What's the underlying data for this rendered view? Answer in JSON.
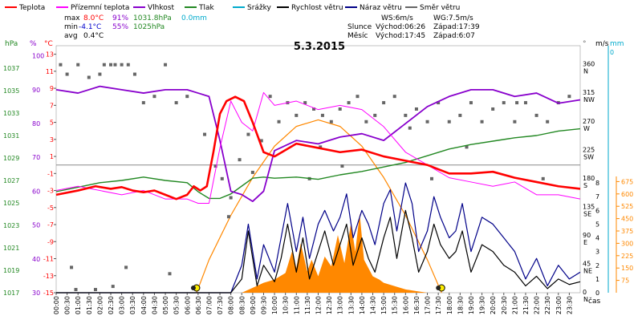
{
  "legend": [
    {
      "label": "Teplota",
      "color": "#ff0000"
    },
    {
      "label": "Přízemní teplota",
      "color": "#ff00ff"
    },
    {
      "label": "Vlhkost",
      "color": "#8800cc"
    },
    {
      "label": "Tlak",
      "color": "#228822"
    },
    {
      "label": "Srážky",
      "color": "#00aacc"
    },
    {
      "label": "Rychlost větru",
      "color": "#000000"
    },
    {
      "label": "Náraz větru",
      "color": "#000088"
    },
    {
      "label": "Směr větru",
      "color": "#666666"
    }
  ],
  "stats": {
    "max_label": "max",
    "max_temp": "8.0°C",
    "max_hum": "91%",
    "max_press": "1031.8hPa",
    "max_rain": "0.0mm",
    "min_label": "min",
    "min_temp": "-4.1°C",
    "min_hum": "55%",
    "min_press": "1025hPa",
    "avg_label": "avg",
    "avg_temp": "0.4°C"
  },
  "sun": {
    "ws": "WS:6m/s",
    "wg": "WG:7.5m/s",
    "slunce_label": "Slunce",
    "sun_rise": "Východ:06:26",
    "sun_set": "Západ:17:39",
    "mesic_label": "Měsíc",
    "moon_rise": "Východ:17:45",
    "moon_set": "Západ:6:07"
  },
  "units": {
    "hpa": "hPa",
    "pct": "%",
    "celsius": "°C",
    "deg": "°",
    "ms": "m/s",
    "mm": "mm",
    "cas": "čas"
  },
  "chart_data": {
    "type": "line",
    "title": "5.3.2015",
    "x_ticks": [
      "00:00",
      "00:30",
      "01:00",
      "01:30",
      "02:00",
      "02:30",
      "03:00",
      "03:30",
      "04:00",
      "04:30",
      "05:00",
      "05:30",
      "06:00",
      "06:30",
      "07:00",
      "07:30",
      "08:00",
      "08:30",
      "09:00",
      "09:30",
      "10:00",
      "10:30",
      "11:00",
      "11:30",
      "12:00",
      "12:30",
      "13:00",
      "13:30",
      "14:00",
      "14:30",
      "15:00",
      "15:30",
      "16:00",
      "16:30",
      "17:00",
      "17:30",
      "18:00",
      "18:30",
      "19:00",
      "19:30",
      "20:00",
      "20:30",
      "21:00",
      "21:30",
      "22:00",
      "22:30",
      "23:00",
      "23:30"
    ],
    "axes": {
      "hpa": {
        "ticks": [
          1017,
          1019,
          1021,
          1023,
          1025,
          1027,
          1029,
          1031,
          1033,
          1035,
          1037
        ],
        "range": [
          1017,
          1039
        ]
      },
      "pct": {
        "ticks": [
          30,
          40,
          50,
          60,
          70,
          80,
          90,
          100
        ],
        "range": [
          30,
          103
        ]
      },
      "celsius": {
        "ticks": [
          -15,
          -13,
          -11,
          -9,
          -7,
          -5,
          -3,
          -1,
          1,
          3,
          5,
          7,
          9,
          11,
          13
        ],
        "range": [
          -15,
          14
        ]
      },
      "deg": {
        "ticks": [
          0,
          45,
          90,
          135,
          180,
          225,
          270,
          315,
          360
        ],
        "labels": [
          "N",
          "NE",
          "E",
          "SE",
          "S",
          "SW",
          "W",
          "NW",
          "N"
        ],
        "range": [
          0,
          390
        ]
      },
      "ms": {
        "ticks": [
          0,
          1,
          2,
          3,
          4,
          5,
          6,
          7,
          8
        ],
        "range": [
          0,
          18
        ]
      },
      "mm": {
        "ticks": [
          0
        ],
        "range": [
          0,
          1
        ]
      },
      "rad": {
        "ticks": [
          75,
          150,
          225,
          300,
          375,
          450,
          525,
          600,
          675
        ],
        "range": [
          0,
          1500
        ]
      }
    },
    "series": [
      {
        "name": "Teplota",
        "axis": "celsius",
        "color": "#ff0000",
        "width": 2.6,
        "x": [
          0,
          1,
          1.8,
          2.5,
          3,
          3.5,
          4,
          4.5,
          5,
          5.5,
          6,
          6.3,
          6.6,
          6.9,
          7.2,
          7.5,
          7.8,
          8.2,
          8.6,
          9,
          9.5,
          10,
          11,
          12,
          13,
          14,
          15,
          16,
          17,
          18,
          19,
          20,
          21,
          22,
          23,
          24
        ],
        "y": [
          -3.5,
          -3.0,
          -2.5,
          -2.8,
          -2.6,
          -3.0,
          -3.2,
          -3.0,
          -3.5,
          -4.0,
          -3.5,
          -2.5,
          -3.0,
          -2.5,
          1.5,
          6.0,
          7.5,
          8.0,
          7.5,
          5.0,
          1.5,
          1.0,
          2.5,
          2.0,
          1.5,
          1.8,
          1.0,
          0.5,
          0.0,
          -1.0,
          -1.0,
          -0.8,
          -1.5,
          -2.0,
          -2.5,
          -2.8
        ]
      },
      {
        "name": "Přízemní teplota",
        "axis": "celsius",
        "color": "#ff00ff",
        "width": 1.0,
        "x": [
          0,
          1,
          2,
          3,
          4,
          5,
          6,
          6.5,
          7,
          7.5,
          8,
          8.5,
          9,
          9.5,
          10,
          11,
          12,
          13,
          14,
          15,
          16,
          17,
          18,
          19,
          20,
          21,
          22,
          23,
          24
        ],
        "y": [
          -3.0,
          -2.5,
          -3.0,
          -3.5,
          -3.0,
          -4.0,
          -4.0,
          -4.5,
          -4.5,
          2.0,
          7.5,
          5.0,
          4.0,
          8.5,
          7.0,
          7.5,
          6.5,
          7.0,
          6.5,
          4.5,
          1.5,
          0.0,
          -1.5,
          -2.0,
          -2.5,
          -2.0,
          -3.5,
          -3.5,
          -4.0
        ]
      },
      {
        "name": "Vlhkost",
        "axis": "pct",
        "color": "#8800cc",
        "width": 1.8,
        "x": [
          0,
          1,
          2,
          3,
          4,
          5,
          6,
          6.5,
          7,
          7.5,
          8,
          8.5,
          9,
          9.5,
          10,
          11,
          12,
          13,
          14,
          15,
          16,
          17,
          18,
          19,
          20,
          21,
          22,
          23,
          24
        ],
        "y": [
          90,
          89,
          91,
          90,
          89,
          90,
          90,
          89,
          88,
          75,
          60,
          59,
          57,
          60,
          72,
          75,
          74,
          76,
          77,
          75,
          80,
          85,
          88,
          90,
          90,
          88,
          89,
          86,
          87
        ]
      },
      {
        "name": "Tlak",
        "axis": "hpa",
        "color": "#228822",
        "width": 1.4,
        "x": [
          0,
          1,
          2,
          3,
          4,
          5,
          6,
          6.5,
          7,
          7.5,
          8,
          8.5,
          9,
          9.5,
          10,
          11,
          12,
          13,
          14,
          15,
          16,
          17,
          18,
          19,
          20,
          21,
          22,
          23,
          24
        ],
        "y": [
          1026.0,
          1026.4,
          1026.8,
          1027.0,
          1027.3,
          1027.0,
          1026.8,
          1026.0,
          1025.4,
          1025.4,
          1025.8,
          1026.5,
          1027.2,
          1027.3,
          1027.2,
          1027.3,
          1027.1,
          1027.5,
          1027.8,
          1028.2,
          1028.6,
          1029.2,
          1029.8,
          1030.2,
          1030.5,
          1030.8,
          1031.0,
          1031.4,
          1031.6
        ]
      },
      {
        "name": "Náraz větru",
        "axis": "ms",
        "color": "#000088",
        "width": 1.2,
        "x": [
          0,
          8,
          8.5,
          8.8,
          9.2,
          9.5,
          10,
          10.3,
          10.6,
          11,
          11.3,
          11.6,
          12,
          12.3,
          12.7,
          13,
          13.3,
          13.6,
          14,
          14.3,
          14.6,
          15,
          15.3,
          15.6,
          16,
          16.3,
          16.6,
          17,
          17.3,
          17.6,
          18,
          18.3,
          18.6,
          19,
          19.5,
          20,
          20.5,
          21,
          21.5,
          22,
          22.5,
          23,
          23.5,
          24
        ],
        "y": [
          0,
          0,
          2.0,
          5.0,
          1.0,
          3.5,
          1.5,
          4.0,
          6.5,
          3.0,
          5.5,
          2.5,
          5.0,
          6.0,
          4.5,
          5.5,
          7.2,
          4.0,
          6.0,
          5.0,
          3.5,
          6.5,
          7.5,
          4.5,
          8.0,
          6.5,
          3.0,
          4.5,
          7.0,
          5.5,
          4.0,
          4.5,
          6.5,
          3.0,
          5.5,
          5.0,
          4.0,
          3.0,
          1.0,
          2.5,
          0.5,
          2.0,
          1.0,
          1.5
        ]
      },
      {
        "name": "Rychlost větru",
        "axis": "ms",
        "color": "#000000",
        "width": 1.2,
        "x": [
          0,
          8,
          8.5,
          8.8,
          9.2,
          9.5,
          10,
          10.3,
          10.6,
          11,
          11.3,
          11.6,
          12,
          12.3,
          12.7,
          13,
          13.3,
          13.6,
          14,
          14.3,
          14.6,
          15,
          15.3,
          15.6,
          16,
          16.3,
          16.6,
          17,
          17.3,
          17.6,
          18,
          18.3,
          18.6,
          19,
          19.5,
          20,
          20.5,
          21,
          21.5,
          22,
          22.5,
          23,
          23.5,
          24
        ],
        "y": [
          0,
          0,
          1.0,
          4.5,
          0.5,
          2.0,
          0.8,
          2.5,
          5.0,
          1.5,
          4.0,
          1.0,
          3.0,
          4.5,
          2.0,
          3.5,
          5.0,
          2.0,
          4.0,
          2.5,
          1.5,
          4.0,
          5.5,
          2.5,
          6.0,
          4.0,
          1.5,
          3.0,
          5.0,
          3.5,
          2.5,
          3.0,
          4.5,
          1.5,
          3.5,
          3.0,
          2.0,
          1.5,
          0.5,
          1.2,
          0.3,
          1.0,
          0.6,
          0.8
        ]
      },
      {
        "name": "Směr větru",
        "axis": "deg",
        "type": "scatter",
        "color": "#666666",
        "x": [
          0.2,
          0.5,
          1,
          1.5,
          2,
          2.2,
          2.5,
          2.7,
          3,
          3.3,
          3.6,
          4,
          4.5,
          5,
          5.5,
          6,
          0.7,
          3.2,
          5.2,
          6.8,
          7.3,
          7.6,
          8,
          8.4,
          9,
          9.4,
          9.8,
          10.2,
          10.6,
          11,
          11.4,
          11.8,
          12.2,
          12.6,
          13,
          13.4,
          13.8,
          14.2,
          14.6,
          15,
          15.5,
          16,
          16.5,
          17,
          17.5,
          18,
          18.5,
          19,
          19.5,
          20,
          20.5,
          21,
          21.5,
          22,
          22.5,
          23,
          23.5,
          0.9,
          1.8,
          2.6,
          7.9,
          8.8,
          11.6,
          12.1,
          13.1,
          16.2,
          17.2,
          18.8,
          21.1,
          22.3
        ],
        "y": [
          360,
          345,
          360,
          340,
          345,
          360,
          360,
          360,
          360,
          360,
          345,
          300,
          310,
          360,
          300,
          310,
          40,
          40,
          30,
          250,
          200,
          180,
          150,
          210,
          190,
          240,
          310,
          270,
          300,
          280,
          300,
          290,
          280,
          270,
          290,
          300,
          310,
          270,
          280,
          300,
          310,
          280,
          290,
          270,
          300,
          270,
          280,
          300,
          270,
          290,
          300,
          270,
          300,
          280,
          270,
          300,
          310,
          5,
          5,
          10,
          120,
          250,
          180,
          230,
          200,
          260,
          180,
          230,
          300,
          180
        ]
      },
      {
        "name": "Solar",
        "axis": "rad",
        "type": "area",
        "color": "#ff8800",
        "x": [
          8.5,
          9,
          9.5,
          10,
          10.5,
          10.8,
          11,
          11.2,
          11.5,
          11.7,
          12,
          12.3,
          12.6,
          12.9,
          13.2,
          13.5,
          13.7,
          13.9,
          14.1,
          14.3,
          14.5,
          14.8,
          15,
          15.5,
          16,
          16.5,
          17
        ],
        "y": [
          0,
          30,
          60,
          80,
          120,
          250,
          150,
          300,
          130,
          200,
          100,
          220,
          160,
          350,
          180,
          420,
          250,
          480,
          200,
          150,
          100,
          80,
          60,
          40,
          20,
          10,
          0
        ]
      },
      {
        "name": "Theoretical radiation",
        "axis": "rad",
        "type": "line",
        "color": "#ff8800",
        "x": [
          6.43,
          7,
          8,
          9,
          10,
          11,
          12,
          13,
          14,
          15,
          16,
          17,
          17.65
        ],
        "y": [
          0,
          200,
          470,
          700,
          890,
          1010,
          1050,
          1010,
          890,
          700,
          470,
          200,
          0
        ]
      }
    ]
  }
}
